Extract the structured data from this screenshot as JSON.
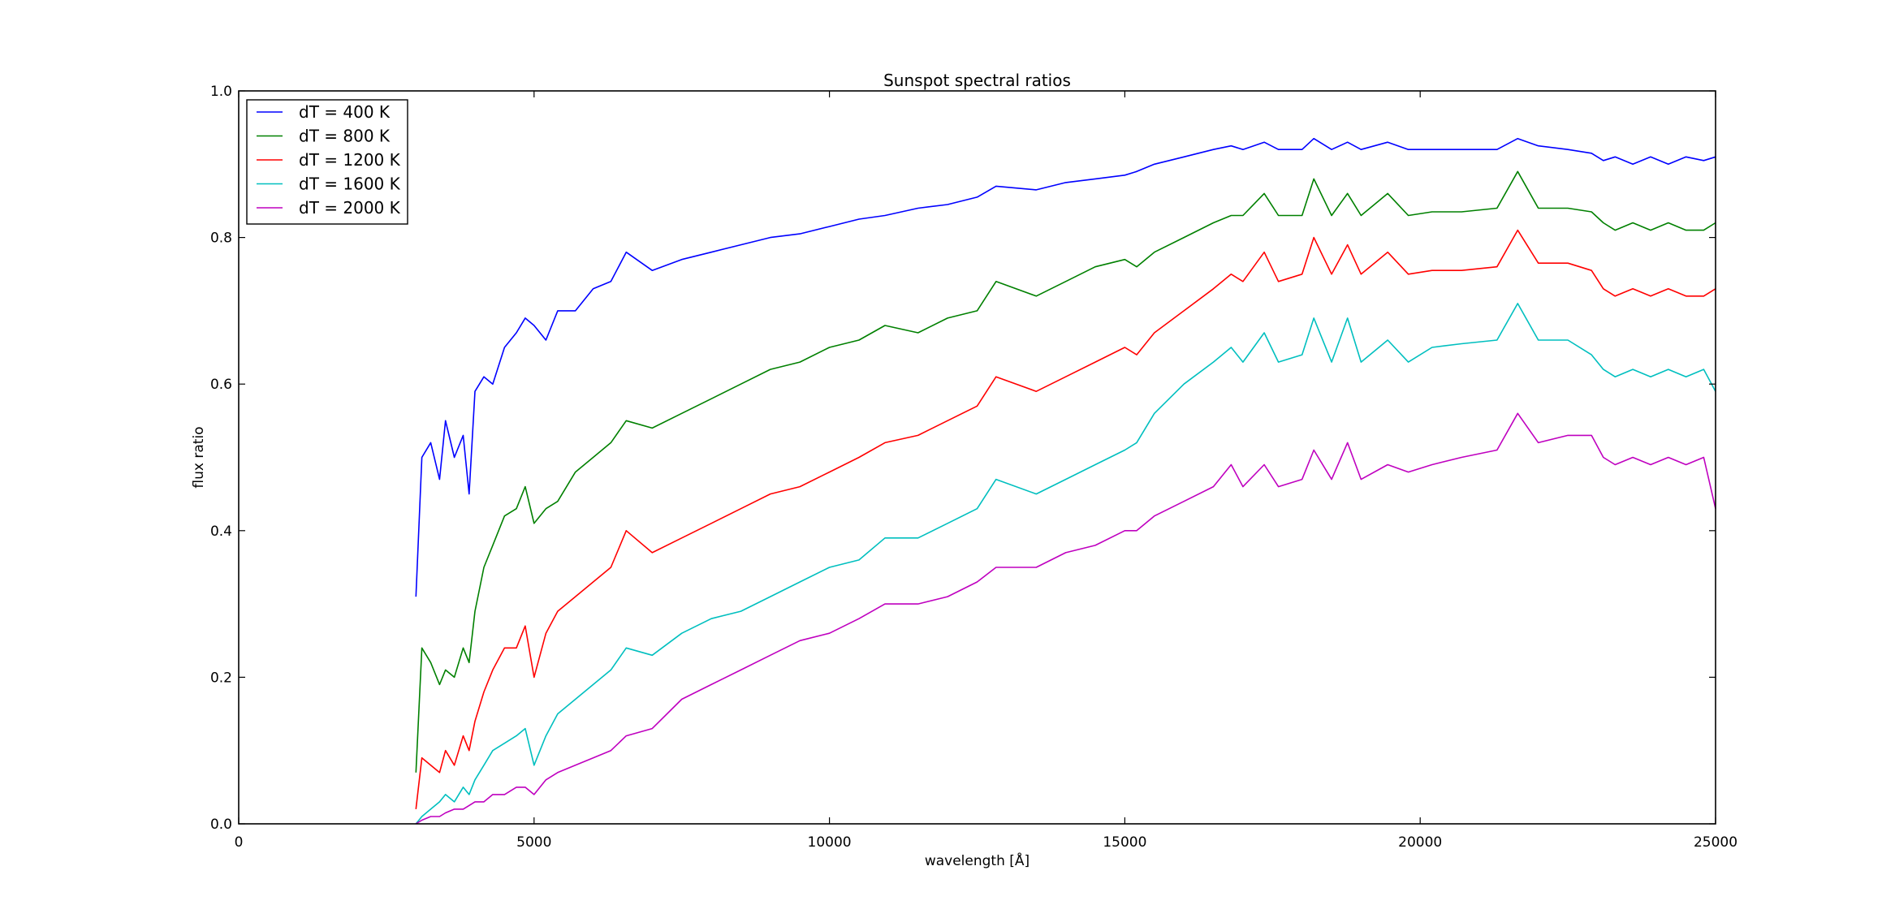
{
  "chart_data": {
    "type": "line",
    "title": "Sunspot spectral ratios",
    "xlabel": "wavelength [Å]",
    "ylabel": "flux ratio",
    "xlim": [
      0,
      25000
    ],
    "ylim": [
      0.0,
      1.0
    ],
    "x_ticks": [
      0,
      5000,
      10000,
      15000,
      20000,
      25000
    ],
    "x_tick_labels": [
      "0",
      "5000",
      "10000",
      "15000",
      "20000",
      "25000"
    ],
    "y_ticks": [
      0.0,
      0.2,
      0.4,
      0.6,
      0.8,
      1.0
    ],
    "y_tick_labels": [
      "0.0",
      "0.2",
      "0.4",
      "0.6",
      "0.8",
      "1.0"
    ],
    "grid": false,
    "legend_position": "top-left",
    "series": [
      {
        "name": "dT = 400 K",
        "color": "#0000ff",
        "x": [
          3000,
          3100,
          3250,
          3400,
          3500,
          3650,
          3800,
          3900,
          4000,
          4150,
          4300,
          4500,
          4700,
          4850,
          5000,
          5200,
          5400,
          5700,
          6000,
          6300,
          6560,
          7000,
          7500,
          8000,
          8500,
          9000,
          9500,
          10000,
          10500,
          10940,
          11500,
          12000,
          12500,
          12820,
          13500,
          14000,
          14500,
          15000,
          15200,
          15500,
          16000,
          16500,
          16800,
          17000,
          17360,
          17600,
          18000,
          18200,
          18500,
          18770,
          19000,
          19450,
          19800,
          20200,
          20700,
          21300,
          21650,
          22000,
          22500,
          22900,
          23100,
          23300,
          23600,
          23900,
          24200,
          24500,
          24800,
          25000
        ],
        "y": [
          0.31,
          0.5,
          0.52,
          0.47,
          0.55,
          0.5,
          0.53,
          0.45,
          0.59,
          0.61,
          0.6,
          0.65,
          0.67,
          0.69,
          0.68,
          0.66,
          0.7,
          0.7,
          0.73,
          0.74,
          0.78,
          0.755,
          0.77,
          0.78,
          0.79,
          0.8,
          0.805,
          0.815,
          0.825,
          0.83,
          0.84,
          0.845,
          0.855,
          0.87,
          0.865,
          0.875,
          0.88,
          0.885,
          0.89,
          0.9,
          0.91,
          0.92,
          0.925,
          0.92,
          0.93,
          0.92,
          0.92,
          0.935,
          0.92,
          0.93,
          0.92,
          0.93,
          0.92,
          0.92,
          0.92,
          0.92,
          0.935,
          0.925,
          0.92,
          0.915,
          0.905,
          0.91,
          0.9,
          0.91,
          0.9,
          0.91,
          0.905,
          0.91
        ]
      },
      {
        "name": "dT = 800 K",
        "color": "#008000",
        "x": [
          3000,
          3100,
          3250,
          3400,
          3500,
          3650,
          3800,
          3900,
          4000,
          4150,
          4300,
          4500,
          4700,
          4850,
          5000,
          5200,
          5400,
          5700,
          6000,
          6300,
          6560,
          7000,
          7500,
          8000,
          8500,
          9000,
          9500,
          10000,
          10500,
          10940,
          11500,
          12000,
          12500,
          12820,
          13500,
          14000,
          14500,
          15000,
          15200,
          15500,
          16000,
          16500,
          16800,
          17000,
          17360,
          17600,
          18000,
          18200,
          18500,
          18770,
          19000,
          19450,
          19800,
          20200,
          20700,
          21300,
          21650,
          22000,
          22500,
          22900,
          23100,
          23300,
          23600,
          23900,
          24200,
          24500,
          24800,
          25000
        ],
        "y": [
          0.07,
          0.24,
          0.22,
          0.19,
          0.21,
          0.2,
          0.24,
          0.22,
          0.29,
          0.35,
          0.38,
          0.42,
          0.43,
          0.46,
          0.41,
          0.43,
          0.44,
          0.48,
          0.5,
          0.52,
          0.55,
          0.54,
          0.56,
          0.58,
          0.6,
          0.62,
          0.63,
          0.65,
          0.66,
          0.68,
          0.67,
          0.69,
          0.7,
          0.74,
          0.72,
          0.74,
          0.76,
          0.77,
          0.76,
          0.78,
          0.8,
          0.82,
          0.83,
          0.83,
          0.86,
          0.83,
          0.83,
          0.88,
          0.83,
          0.86,
          0.83,
          0.86,
          0.83,
          0.835,
          0.835,
          0.84,
          0.89,
          0.84,
          0.84,
          0.835,
          0.82,
          0.81,
          0.82,
          0.81,
          0.82,
          0.81,
          0.81,
          0.82
        ]
      },
      {
        "name": "dT = 1200 K",
        "color": "#ff0000",
        "x": [
          3000,
          3100,
          3250,
          3400,
          3500,
          3650,
          3800,
          3900,
          4000,
          4150,
          4300,
          4500,
          4700,
          4850,
          5000,
          5200,
          5400,
          5700,
          6000,
          6300,
          6560,
          7000,
          7500,
          8000,
          8500,
          9000,
          9500,
          10000,
          10500,
          10940,
          11500,
          12000,
          12500,
          12820,
          13500,
          14000,
          14500,
          15000,
          15200,
          15500,
          16000,
          16500,
          16800,
          17000,
          17360,
          17600,
          18000,
          18200,
          18500,
          18770,
          19000,
          19450,
          19800,
          20200,
          20700,
          21300,
          21650,
          22000,
          22500,
          22900,
          23100,
          23300,
          23600,
          23900,
          24200,
          24500,
          24800,
          25000
        ],
        "y": [
          0.02,
          0.09,
          0.08,
          0.07,
          0.1,
          0.08,
          0.12,
          0.1,
          0.14,
          0.18,
          0.21,
          0.24,
          0.24,
          0.27,
          0.2,
          0.26,
          0.29,
          0.31,
          0.33,
          0.35,
          0.4,
          0.37,
          0.39,
          0.41,
          0.43,
          0.45,
          0.46,
          0.48,
          0.5,
          0.52,
          0.53,
          0.55,
          0.57,
          0.61,
          0.59,
          0.61,
          0.63,
          0.65,
          0.64,
          0.67,
          0.7,
          0.73,
          0.75,
          0.74,
          0.78,
          0.74,
          0.75,
          0.8,
          0.75,
          0.79,
          0.75,
          0.78,
          0.75,
          0.755,
          0.755,
          0.76,
          0.81,
          0.765,
          0.765,
          0.755,
          0.73,
          0.72,
          0.73,
          0.72,
          0.73,
          0.72,
          0.72,
          0.73
        ]
      },
      {
        "name": "dT = 1600 K",
        "color": "#00bfbf",
        "x": [
          3000,
          3100,
          3250,
          3400,
          3500,
          3650,
          3800,
          3900,
          4000,
          4150,
          4300,
          4500,
          4700,
          4850,
          5000,
          5200,
          5400,
          5700,
          6000,
          6300,
          6560,
          7000,
          7500,
          8000,
          8500,
          9000,
          9500,
          10000,
          10500,
          10940,
          11500,
          12000,
          12500,
          12820,
          13500,
          14000,
          14500,
          15000,
          15200,
          15500,
          16000,
          16500,
          16800,
          17000,
          17360,
          17600,
          18000,
          18200,
          18500,
          18770,
          19000,
          19450,
          19800,
          20200,
          20700,
          21300,
          21650,
          22000,
          22500,
          22900,
          23100,
          23300,
          23600,
          23900,
          24200,
          24500,
          24800,
          25000
        ],
        "y": [
          0.0,
          0.01,
          0.02,
          0.03,
          0.04,
          0.03,
          0.05,
          0.04,
          0.06,
          0.08,
          0.1,
          0.11,
          0.12,
          0.13,
          0.08,
          0.12,
          0.15,
          0.17,
          0.19,
          0.21,
          0.24,
          0.23,
          0.26,
          0.28,
          0.29,
          0.31,
          0.33,
          0.35,
          0.36,
          0.39,
          0.39,
          0.41,
          0.43,
          0.47,
          0.45,
          0.47,
          0.49,
          0.51,
          0.52,
          0.56,
          0.6,
          0.63,
          0.65,
          0.63,
          0.67,
          0.63,
          0.64,
          0.69,
          0.63,
          0.69,
          0.63,
          0.66,
          0.63,
          0.65,
          0.655,
          0.66,
          0.71,
          0.66,
          0.66,
          0.64,
          0.62,
          0.61,
          0.62,
          0.61,
          0.62,
          0.61,
          0.62,
          0.59
        ]
      },
      {
        "name": "dT = 2000 K",
        "color": "#bf00bf",
        "x": [
          3000,
          3100,
          3250,
          3400,
          3500,
          3650,
          3800,
          3900,
          4000,
          4150,
          4300,
          4500,
          4700,
          4850,
          5000,
          5200,
          5400,
          5700,
          6000,
          6300,
          6560,
          7000,
          7500,
          8000,
          8500,
          9000,
          9500,
          10000,
          10500,
          10940,
          11500,
          12000,
          12500,
          12820,
          13500,
          14000,
          14500,
          15000,
          15200,
          15500,
          16000,
          16500,
          16800,
          17000,
          17360,
          17600,
          18000,
          18200,
          18500,
          18770,
          19000,
          19450,
          19800,
          20200,
          20700,
          21300,
          21650,
          22000,
          22500,
          22900,
          23100,
          23300,
          23600,
          23900,
          24200,
          24500,
          24800,
          25000
        ],
        "y": [
          0.0,
          0.005,
          0.01,
          0.01,
          0.015,
          0.02,
          0.02,
          0.025,
          0.03,
          0.03,
          0.04,
          0.04,
          0.05,
          0.05,
          0.04,
          0.06,
          0.07,
          0.08,
          0.09,
          0.1,
          0.12,
          0.13,
          0.17,
          0.19,
          0.21,
          0.23,
          0.25,
          0.26,
          0.28,
          0.3,
          0.3,
          0.31,
          0.33,
          0.35,
          0.35,
          0.37,
          0.38,
          0.4,
          0.4,
          0.42,
          0.44,
          0.46,
          0.49,
          0.46,
          0.49,
          0.46,
          0.47,
          0.51,
          0.47,
          0.52,
          0.47,
          0.49,
          0.48,
          0.49,
          0.5,
          0.51,
          0.56,
          0.52,
          0.53,
          0.53,
          0.5,
          0.49,
          0.5,
          0.49,
          0.5,
          0.49,
          0.5,
          0.43
        ]
      }
    ]
  }
}
